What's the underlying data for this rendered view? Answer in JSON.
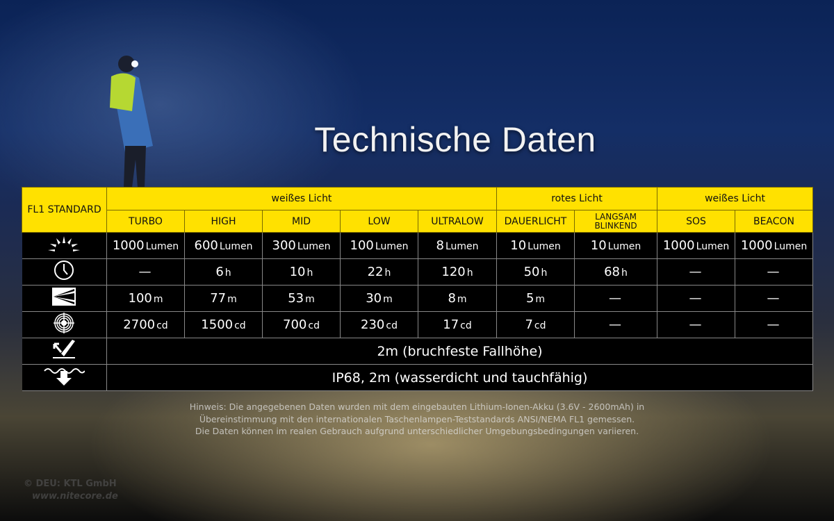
{
  "title": "Technische Daten",
  "table": {
    "corner": "FL1 STANDARD",
    "groups": [
      {
        "label": "weißes Licht",
        "span": 5
      },
      {
        "label": "rotes Licht",
        "span": 2
      },
      {
        "label": "weißes Licht",
        "span": 2
      }
    ],
    "modes": [
      "TURBO",
      "HIGH",
      "MID",
      "LOW",
      "ULTRALOW",
      "DAUERLICHT",
      "LANGSAM BLINKEND",
      "SOS",
      "BEACON"
    ],
    "rows": [
      {
        "icon": "brightness-sun-icon",
        "cells": [
          [
            "1000",
            "Lumen"
          ],
          [
            "600",
            "Lumen"
          ],
          [
            "300",
            "Lumen"
          ],
          [
            "100",
            "Lumen"
          ],
          [
            "8",
            "Lumen"
          ],
          [
            "10",
            "Lumen"
          ],
          [
            "10",
            "Lumen"
          ],
          [
            "1000",
            "Lumen"
          ],
          [
            "1000",
            "Lumen"
          ]
        ]
      },
      {
        "icon": "runtime-clock-icon",
        "cells": [
          [
            "—",
            ""
          ],
          [
            "6",
            "h"
          ],
          [
            "10",
            "h"
          ],
          [
            "22",
            "h"
          ],
          [
            "120",
            "h"
          ],
          [
            "50",
            "h"
          ],
          [
            "68",
            "h"
          ],
          [
            "—",
            ""
          ],
          [
            "—",
            ""
          ]
        ]
      },
      {
        "icon": "beam-distance-icon",
        "cells": [
          [
            "100",
            "m"
          ],
          [
            "77",
            "m"
          ],
          [
            "53",
            "m"
          ],
          [
            "30",
            "m"
          ],
          [
            "8",
            "m"
          ],
          [
            "5",
            "m"
          ],
          [
            "—",
            ""
          ],
          [
            "—",
            ""
          ],
          [
            "—",
            ""
          ]
        ]
      },
      {
        "icon": "peak-intensity-target-icon",
        "cells": [
          [
            "2700",
            "cd"
          ],
          [
            "1500",
            "cd"
          ],
          [
            "700",
            "cd"
          ],
          [
            "230",
            "cd"
          ],
          [
            "17",
            "cd"
          ],
          [
            "7",
            "cd"
          ],
          [
            "—",
            ""
          ],
          [
            "—",
            ""
          ],
          [
            "—",
            ""
          ]
        ]
      }
    ],
    "impact": {
      "icon": "impact-resistance-icon",
      "text": "2m (bruchfeste Fallhöhe)"
    },
    "water": {
      "icon": "waterproof-icon",
      "text": "IP68, 2m (wasserdicht und tauchfähig)"
    }
  },
  "note": [
    "Hinweis: Die angegebenen Daten wurden mit dem eingebauten Lithium-Ionen-Akku (3.6V - 2600mAh) in",
    "Übereinstimmung mit den internationalen Taschenlampen-Teststandards ANSI/NEMA FL1 gemessen.",
    "Die Daten können im realen Gebrauch aufgrund unterschiedlicher Umgebungsbedingungen variieren."
  ],
  "watermark": {
    "line1": "© DEU: KTL GmbH",
    "line2": "www.nitecore.de"
  },
  "colors": {
    "header": "#ffe100",
    "cell_bg": "#000000",
    "text": "#ffffff"
  }
}
